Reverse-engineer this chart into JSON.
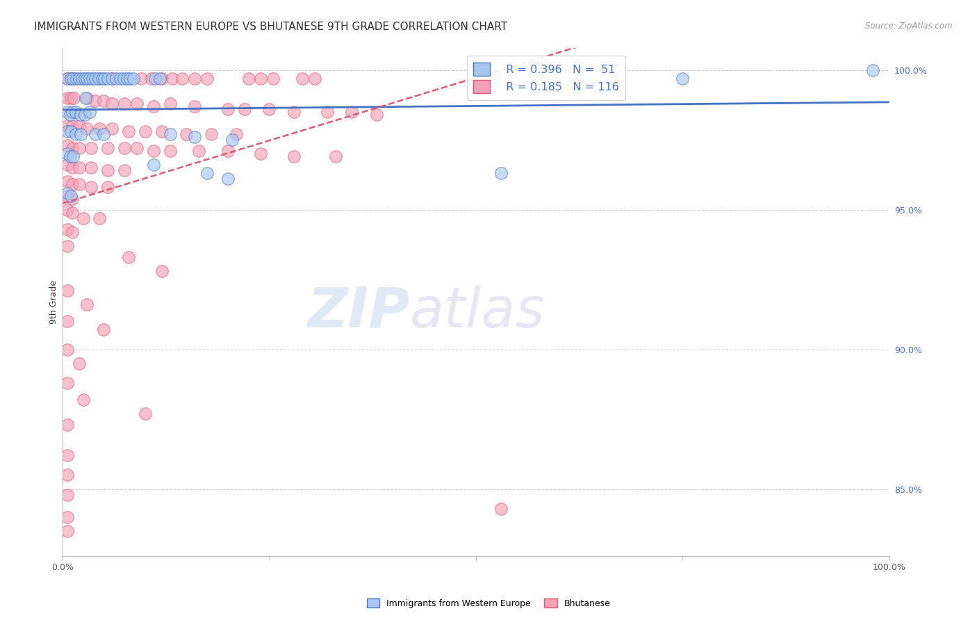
{
  "title": "IMMIGRANTS FROM WESTERN EUROPE VS BHUTANESE 9TH GRADE CORRELATION CHART",
  "source": "Source: ZipAtlas.com",
  "ylabel": "9th Grade",
  "ylabel_right_ticks": [
    "100.0%",
    "95.0%",
    "90.0%",
    "85.0%"
  ],
  "ylabel_right_vals": [
    1.0,
    0.95,
    0.9,
    0.85
  ],
  "xlim": [
    0.0,
    1.0
  ],
  "ylim": [
    0.826,
    1.008
  ],
  "legend1_label": "Immigrants from Western Europe",
  "legend2_label": "Bhutanese",
  "r1": 0.396,
  "n1": 51,
  "r2": 0.185,
  "n2": 116,
  "color_blue": "#A8C8F0",
  "color_pink": "#F4A0B8",
  "line_blue": "#4472C4",
  "line_pink": "#E05870",
  "background": "#FFFFFF",
  "grid_color": "#CCCCCC",
  "watermark_zip": "ZIP",
  "watermark_atlas": "atlas",
  "blue_points": [
    [
      0.006,
      0.997
    ],
    [
      0.01,
      0.997
    ],
    [
      0.013,
      0.997
    ],
    [
      0.017,
      0.997
    ],
    [
      0.02,
      0.997
    ],
    [
      0.024,
      0.997
    ],
    [
      0.027,
      0.997
    ],
    [
      0.03,
      0.997
    ],
    [
      0.033,
      0.997
    ],
    [
      0.036,
      0.997
    ],
    [
      0.04,
      0.997
    ],
    [
      0.044,
      0.997
    ],
    [
      0.048,
      0.997
    ],
    [
      0.051,
      0.997
    ],
    [
      0.055,
      0.997
    ],
    [
      0.06,
      0.997
    ],
    [
      0.065,
      0.997
    ],
    [
      0.07,
      0.997
    ],
    [
      0.074,
      0.997
    ],
    [
      0.078,
      0.997
    ],
    [
      0.082,
      0.997
    ],
    [
      0.086,
      0.997
    ],
    [
      0.112,
      0.997
    ],
    [
      0.118,
      0.997
    ],
    [
      0.028,
      0.99
    ],
    [
      0.006,
      0.985
    ],
    [
      0.009,
      0.984
    ],
    [
      0.012,
      0.985
    ],
    [
      0.016,
      0.985
    ],
    [
      0.022,
      0.984
    ],
    [
      0.027,
      0.984
    ],
    [
      0.033,
      0.985
    ],
    [
      0.006,
      0.978
    ],
    [
      0.01,
      0.978
    ],
    [
      0.016,
      0.977
    ],
    [
      0.022,
      0.977
    ],
    [
      0.04,
      0.977
    ],
    [
      0.05,
      0.977
    ],
    [
      0.13,
      0.977
    ],
    [
      0.16,
      0.976
    ],
    [
      0.205,
      0.975
    ],
    [
      0.006,
      0.97
    ],
    [
      0.009,
      0.969
    ],
    [
      0.013,
      0.969
    ],
    [
      0.11,
      0.966
    ],
    [
      0.175,
      0.963
    ],
    [
      0.2,
      0.961
    ],
    [
      0.53,
      0.963
    ],
    [
      0.75,
      0.997
    ],
    [
      0.98,
      1.0
    ],
    [
      0.006,
      0.956
    ],
    [
      0.01,
      0.955
    ]
  ],
  "pink_points": [
    [
      0.006,
      0.997
    ],
    [
      0.01,
      0.997
    ],
    [
      0.014,
      0.997
    ],
    [
      0.045,
      0.997
    ],
    [
      0.06,
      0.997
    ],
    [
      0.095,
      0.997
    ],
    [
      0.108,
      0.997
    ],
    [
      0.12,
      0.997
    ],
    [
      0.133,
      0.997
    ],
    [
      0.145,
      0.997
    ],
    [
      0.16,
      0.997
    ],
    [
      0.175,
      0.997
    ],
    [
      0.225,
      0.997
    ],
    [
      0.24,
      0.997
    ],
    [
      0.255,
      0.997
    ],
    [
      0.29,
      0.997
    ],
    [
      0.305,
      0.997
    ],
    [
      0.006,
      0.99
    ],
    [
      0.01,
      0.99
    ],
    [
      0.014,
      0.99
    ],
    [
      0.03,
      0.99
    ],
    [
      0.04,
      0.989
    ],
    [
      0.05,
      0.989
    ],
    [
      0.06,
      0.988
    ],
    [
      0.075,
      0.988
    ],
    [
      0.09,
      0.988
    ],
    [
      0.11,
      0.987
    ],
    [
      0.13,
      0.988
    ],
    [
      0.16,
      0.987
    ],
    [
      0.2,
      0.986
    ],
    [
      0.22,
      0.986
    ],
    [
      0.25,
      0.986
    ],
    [
      0.28,
      0.985
    ],
    [
      0.32,
      0.985
    ],
    [
      0.35,
      0.985
    ],
    [
      0.38,
      0.984
    ],
    [
      0.006,
      0.98
    ],
    [
      0.012,
      0.98
    ],
    [
      0.02,
      0.98
    ],
    [
      0.03,
      0.979
    ],
    [
      0.045,
      0.979
    ],
    [
      0.06,
      0.979
    ],
    [
      0.08,
      0.978
    ],
    [
      0.1,
      0.978
    ],
    [
      0.12,
      0.978
    ],
    [
      0.15,
      0.977
    ],
    [
      0.18,
      0.977
    ],
    [
      0.21,
      0.977
    ],
    [
      0.006,
      0.973
    ],
    [
      0.012,
      0.972
    ],
    [
      0.02,
      0.972
    ],
    [
      0.035,
      0.972
    ],
    [
      0.055,
      0.972
    ],
    [
      0.075,
      0.972
    ],
    [
      0.09,
      0.972
    ],
    [
      0.11,
      0.971
    ],
    [
      0.13,
      0.971
    ],
    [
      0.165,
      0.971
    ],
    [
      0.2,
      0.971
    ],
    [
      0.24,
      0.97
    ],
    [
      0.28,
      0.969
    ],
    [
      0.33,
      0.969
    ],
    [
      0.006,
      0.966
    ],
    [
      0.012,
      0.965
    ],
    [
      0.02,
      0.965
    ],
    [
      0.035,
      0.965
    ],
    [
      0.055,
      0.964
    ],
    [
      0.075,
      0.964
    ],
    [
      0.006,
      0.96
    ],
    [
      0.012,
      0.959
    ],
    [
      0.02,
      0.959
    ],
    [
      0.035,
      0.958
    ],
    [
      0.055,
      0.958
    ],
    [
      0.006,
      0.955
    ],
    [
      0.012,
      0.954
    ],
    [
      0.006,
      0.95
    ],
    [
      0.012,
      0.949
    ],
    [
      0.025,
      0.947
    ],
    [
      0.045,
      0.947
    ],
    [
      0.006,
      0.943
    ],
    [
      0.012,
      0.942
    ],
    [
      0.006,
      0.937
    ],
    [
      0.08,
      0.933
    ],
    [
      0.12,
      0.928
    ],
    [
      0.006,
      0.921
    ],
    [
      0.03,
      0.916
    ],
    [
      0.006,
      0.91
    ],
    [
      0.05,
      0.907
    ],
    [
      0.006,
      0.9
    ],
    [
      0.02,
      0.895
    ],
    [
      0.006,
      0.888
    ],
    [
      0.025,
      0.882
    ],
    [
      0.1,
      0.877
    ],
    [
      0.006,
      0.873
    ],
    [
      0.53,
      0.843
    ],
    [
      0.006,
      0.862
    ],
    [
      0.006,
      0.855
    ],
    [
      0.006,
      0.848
    ],
    [
      0.006,
      0.84
    ],
    [
      0.006,
      0.835
    ]
  ],
  "title_fontsize": 11,
  "axis_fontsize": 9,
  "source_fontsize": 8.5
}
